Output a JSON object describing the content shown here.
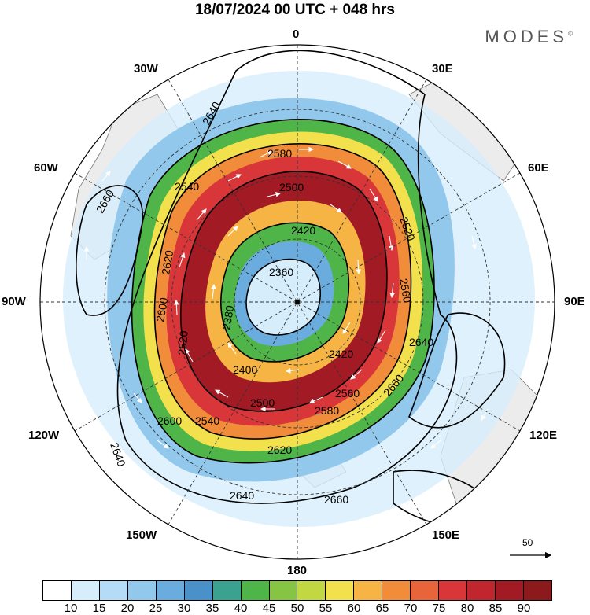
{
  "title": "18/07/2024  00 UTC  + 048 hrs",
  "brand": "MODES",
  "brand_mark": "©",
  "longitude_labels": {
    "lon_0": "0",
    "lon_30e": "30E",
    "lon_60e": "60E",
    "lon_90e": "90E",
    "lon_120e": "120E",
    "lon_150e": "150E",
    "lon_180": "180",
    "lon_150w": "150W",
    "lon_120w": "120W",
    "lon_90w": "90W",
    "lon_60w": "60W",
    "lon_30w": "30W"
  },
  "contour_labels": [
    "2360",
    "2380",
    "2400",
    "2420",
    "2420",
    "2500",
    "2520",
    "2540",
    "2560",
    "2580",
    "2580",
    "2600",
    "2600",
    "2620",
    "2620",
    "2640",
    "2640",
    "2640",
    "2640",
    "2660",
    "2660",
    "2660",
    "2500",
    "2520",
    "2540",
    "2560"
  ],
  "vector_scale_label": "50",
  "colorbar": {
    "colors": [
      "#ffffff",
      "#d6edfb",
      "#b5dcf6",
      "#93c8ed",
      "#6aacde",
      "#4a90c9",
      "#3aa28f",
      "#4fb548",
      "#86c443",
      "#c2d843",
      "#f2e04c",
      "#f6b445",
      "#f08c3a",
      "#e8643a",
      "#d9363a",
      "#c1262f",
      "#a11a24",
      "#8c1a1d"
    ],
    "tick_labels": [
      "10",
      "15",
      "20",
      "25",
      "30",
      "35",
      "40",
      "45",
      "50",
      "55",
      "60",
      "65",
      "70",
      "75",
      "80",
      "85",
      "90"
    ]
  },
  "colors": {
    "land": "#ececec",
    "contour": "#000000",
    "graticule": "#333333"
  }
}
